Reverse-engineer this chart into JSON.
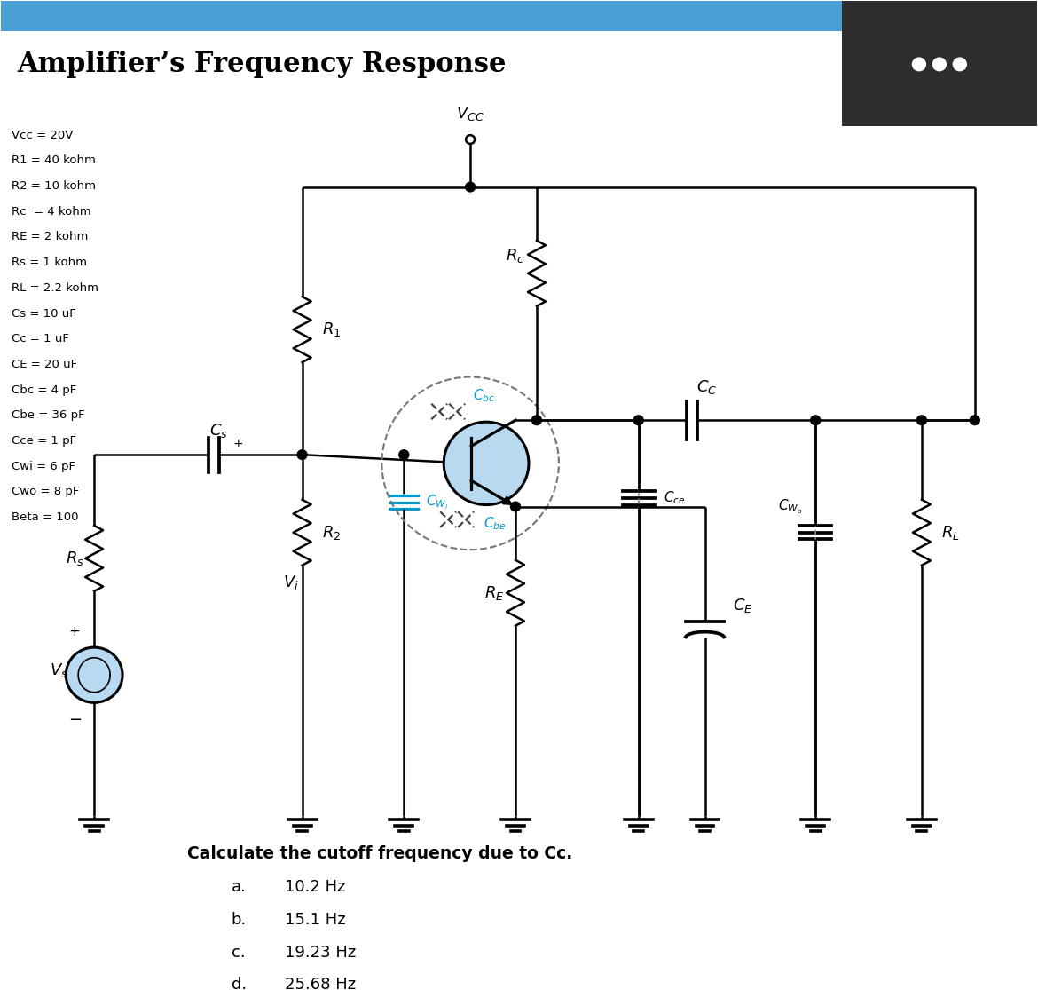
{
  "title": "Amplifier’s Frequency Response",
  "title_fontsize": 22,
  "title_color": "#000000",
  "header_bar_color": "#4a9fd4",
  "bg_color": "#ffffff",
  "corner_box_color": "#2d2d2d",
  "corner_dots_color": "#ffffff",
  "params_text": [
    "Vcc = 20V",
    "R1 = 40 kohm",
    "R2 = 10 kohm",
    "Rc  = 4 kohm",
    "RE = 2 kohm",
    "Rs = 1 kohm",
    "RL = 2.2 kohm",
    "Cs = 10 uF",
    "Cc = 1 uF",
    "CE = 20 uF",
    "Cbc = 4 pF",
    "Cbe = 36 pF",
    "Cce = 1 pF",
    "Cwi = 6 pF",
    "Cwo = 8 pF",
    "Beta = 100"
  ],
  "question": "Calculate the cutoff frequency due to Cc.",
  "choices": [
    [
      "a.",
      "10.2 Hz"
    ],
    [
      "b.",
      "15.1 Hz"
    ],
    [
      "c.",
      "19.23 Hz"
    ],
    [
      "d.",
      "25.68 Hz"
    ]
  ]
}
